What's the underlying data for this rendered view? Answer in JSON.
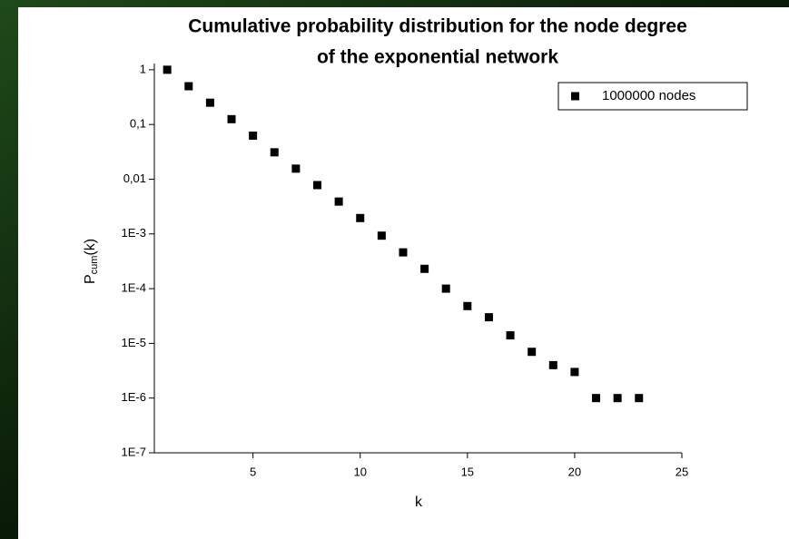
{
  "chart_data": {
    "type": "scatter",
    "title": [
      "Cumulative probability distribution for the node degree",
      "of the exponential network"
    ],
    "x_label": "k",
    "y_label": {
      "main": "P",
      "sub": "cum",
      "suffix": "(k)"
    },
    "log_y": true,
    "legend_corner": "upper right",
    "x": [
      1,
      2,
      3,
      4,
      5,
      6,
      7,
      8,
      9,
      10,
      11,
      12,
      13,
      14,
      15,
      16,
      17,
      18,
      19,
      20,
      21,
      22,
      23
    ],
    "series": [
      {
        "name": "1000000 nodes",
        "color": "#000000",
        "values": [
          1,
          0.5,
          0.25,
          0.125,
          0.0625,
          0.031,
          0.0156,
          0.0078,
          0.0039,
          0.00195,
          0.00093,
          0.00046,
          0.00023,
          0.0001,
          4.8e-05,
          3e-05,
          1.4e-05,
          7e-06,
          4e-06,
          3e-06,
          1e-06,
          1e-06,
          1e-06
        ]
      }
    ],
    "xlim": [
      0.4,
      25
    ],
    "xticks": [
      5,
      10,
      15,
      20,
      25
    ],
    "ylim": [
      1e-07,
      1.3
    ],
    "yticks": [
      1,
      {
        "value": 0.1,
        "label": "0,1"
      },
      {
        "value": 0.01,
        "label": "0,01"
      },
      {
        "value": 0.001,
        "label": "1E-3"
      },
      {
        "value": 0.0001,
        "label": "1E-4"
      },
      {
        "value": 1e-05,
        "label": "1E-5"
      },
      {
        "value": 1e-06,
        "label": "1E-6"
      },
      {
        "value": 1e-07,
        "label": "1E-7"
      }
    ]
  }
}
